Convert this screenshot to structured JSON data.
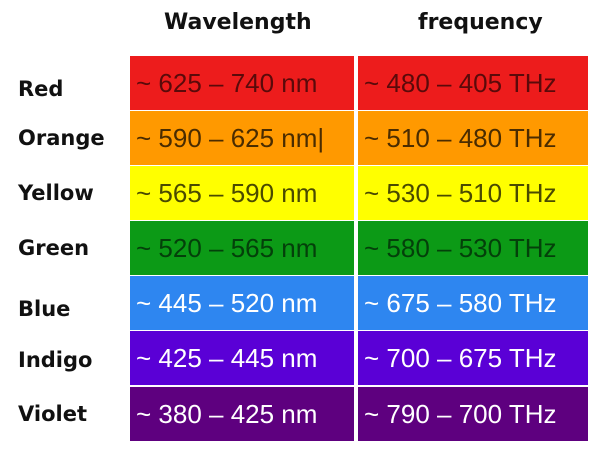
{
  "headers": {
    "wavelength": "Wavelength",
    "frequency": "frequency"
  },
  "rows": [
    {
      "name": "Red",
      "wavelength": "~ 625 – 740 nm",
      "frequency": "~ 480 – 405 THz",
      "color": "#ed1c1c"
    },
    {
      "name": "Orange",
      "wavelength": "~ 590 – 625 nm|",
      "frequency": "~ 510 – 480 THz",
      "color": "#ff9900"
    },
    {
      "name": "Yellow",
      "wavelength": "~ 565 – 590 nm",
      "frequency": "~ 530 – 510 THz",
      "color": "#ffff00"
    },
    {
      "name": "Green",
      "wavelength": "~ 520 – 565 nm",
      "frequency": "~ 580 – 530 THz",
      "color": "#0c9a16"
    },
    {
      "name": "Blue",
      "wavelength": "~ 445 – 520 nm",
      "frequency": "~ 675 – 580 THz",
      "color": "#2e86f0"
    },
    {
      "name": "Indigo",
      "wavelength": "~ 425 – 445 nm",
      "frequency": "~ 700 – 675 THz",
      "color": "#5a00d6"
    },
    {
      "name": "Violet",
      "wavelength": "~ 380 – 425 nm",
      "frequency": "~ 790 – 700 THz",
      "color": "#5e007f"
    }
  ]
}
